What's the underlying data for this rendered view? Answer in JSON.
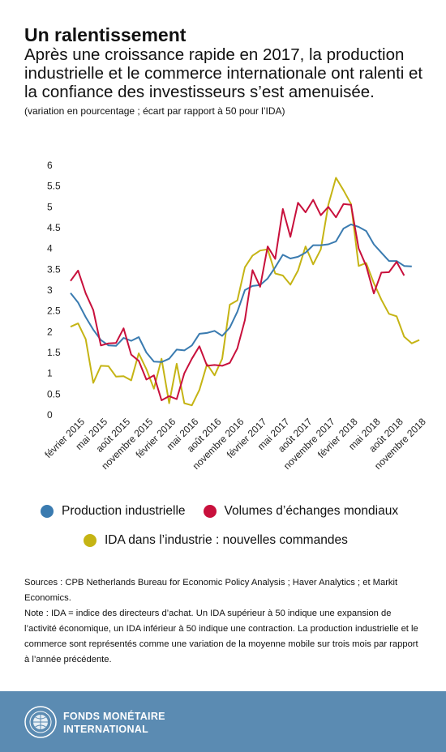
{
  "header": {
    "title": "Un ralentissement",
    "subtitle": "Après une croissance rapide en 2017, la production industrielle et le commerce internationale ont ralenti et la confiance des investisseurs s’est amenuisée.",
    "units": "(variation en pourcentage ; écart par rapport à 50 pour l’IDA)"
  },
  "chart_data": {
    "type": "line",
    "ylim": [
      0,
      6
    ],
    "yticks": [
      "0",
      "0.5",
      "1",
      "1.5",
      "2",
      "2.5",
      "3",
      "3.5",
      "4",
      "4.5",
      "5",
      "5.5",
      "6"
    ],
    "xticks": [
      {
        "index": 0,
        "label": "février 2015"
      },
      {
        "index": 3,
        "label": "mai 2015"
      },
      {
        "index": 6,
        "label": "août 2015"
      },
      {
        "index": 9,
        "label": "novembre 2015"
      },
      {
        "index": 12,
        "label": "février 2016"
      },
      {
        "index": 15,
        "label": "mai 2016"
      },
      {
        "index": 18,
        "label": "août 2016"
      },
      {
        "index": 21,
        "label": "novembre 2016"
      },
      {
        "index": 24,
        "label": "février 2017"
      },
      {
        "index": 27,
        "label": "mai 2017"
      },
      {
        "index": 30,
        "label": "août 2017"
      },
      {
        "index": 33,
        "label": "novembre 2017"
      },
      {
        "index": 36,
        "label": "février 2018"
      },
      {
        "index": 39,
        "label": "mai 2018"
      },
      {
        "index": 42,
        "label": "août 2018"
      },
      {
        "index": 45,
        "label": "novembre 2018"
      }
    ],
    "series": [
      {
        "name": "Production industrielle",
        "color": "#3a7bb0",
        "values": [
          2.93,
          2.7,
          2.35,
          2.05,
          1.8,
          1.67,
          1.66,
          1.85,
          1.78,
          1.87,
          1.5,
          1.28,
          1.27,
          1.35,
          1.57,
          1.55,
          1.67,
          1.95,
          1.97,
          2.02,
          1.9,
          2.1,
          2.48,
          3.0,
          3.1,
          3.12,
          3.28,
          3.55,
          3.85,
          3.76,
          3.8,
          3.9,
          4.08,
          4.08,
          4.1,
          4.17,
          4.48,
          4.58,
          4.52,
          4.42,
          4.1,
          3.9,
          3.7,
          3.7,
          3.58,
          3.57
        ]
      },
      {
        "name": "Volumes d’échanges mondiaux",
        "color": "#c8103c",
        "values": [
          3.22,
          3.47,
          2.92,
          2.52,
          1.67,
          1.72,
          1.73,
          2.08,
          1.45,
          1.3,
          0.85,
          0.95,
          0.35,
          0.45,
          0.38,
          1.0,
          1.35,
          1.65,
          1.18,
          1.2,
          1.18,
          1.25,
          1.6,
          2.28,
          3.48,
          3.08,
          4.05,
          3.75,
          4.95,
          4.28,
          5.1,
          4.87,
          5.17,
          4.8,
          5.0,
          4.75,
          5.07,
          5.05,
          4.0,
          3.58,
          2.92,
          3.42,
          3.43,
          3.68,
          3.35
        ]
      },
      {
        "name": "IDA dans l’industrie : nouvelles commandes",
        "color": "#c5b414",
        "values": [
          2.12,
          2.2,
          1.82,
          0.77,
          1.18,
          1.17,
          0.92,
          0.93,
          0.83,
          1.48,
          1.1,
          0.63,
          1.35,
          0.28,
          1.23,
          0.28,
          0.23,
          0.6,
          1.22,
          0.95,
          1.35,
          2.65,
          2.75,
          3.55,
          3.83,
          3.95,
          3.98,
          3.4,
          3.35,
          3.13,
          3.47,
          4.05,
          3.62,
          3.98,
          5.05,
          5.7,
          5.4,
          5.07,
          3.58,
          3.65,
          3.17,
          2.77,
          2.43,
          2.37,
          1.88,
          1.72,
          1.8
        ]
      }
    ]
  },
  "legend": {
    "items": [
      {
        "label": "Production industrielle",
        "color": "#3a7bb0"
      },
      {
        "label": "Volumes d’échanges mondiaux",
        "color": "#c8103c"
      },
      {
        "label": "IDA dans l’industrie : nouvelles commandes",
        "color": "#c5b414"
      }
    ]
  },
  "sources": {
    "source_text": "Sources : CPB Netherlands Bureau for Economic Policy Analysis ; Haver Analytics ; et Markit Economics.",
    "note_text": "Note : IDA = indice des directeurs d’achat. Un IDA supérieur à 50 indique une expansion de l’activité économique, un IDA inférieur à 50 indique une contraction. La production industrielle et le commerce sont représentés comme une variation de la moyenne mobile sur trois mois par rapport à l’année précédente."
  },
  "footer": {
    "org_line1": "FONDS MONÉTAIRE",
    "org_line2": "INTERNATIONAL",
    "logo_icon": "imf-seal-icon",
    "background": "#5b8bb2"
  }
}
